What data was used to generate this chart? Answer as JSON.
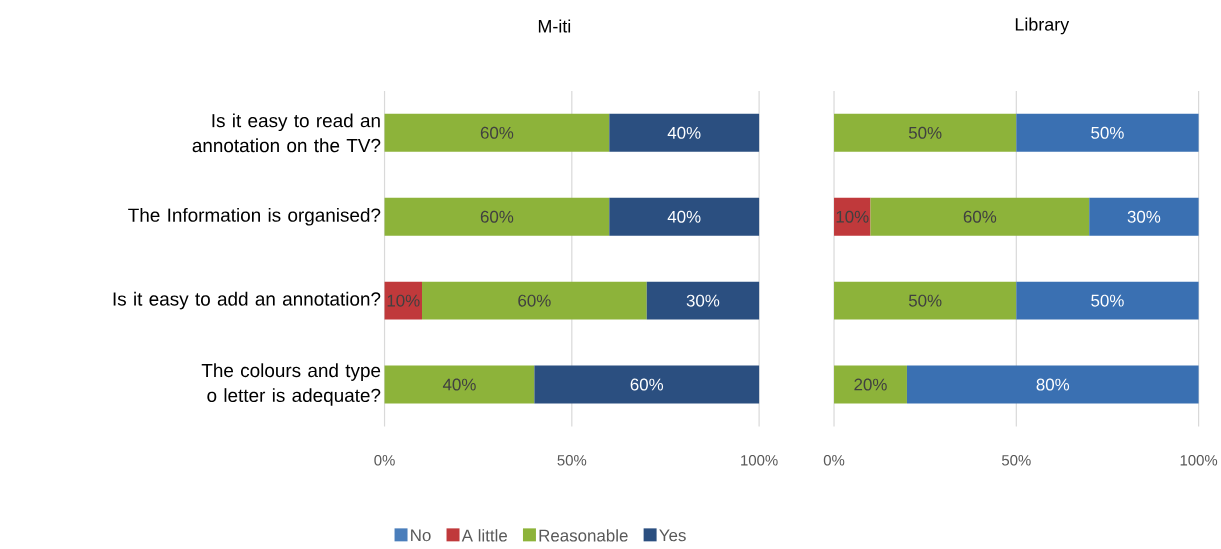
{
  "chart_data": [
    {
      "type": "bar",
      "orientation": "horizontal",
      "stacked": true,
      "title": "M-iti",
      "categories": [
        "Is it easy to read an annotation on the TV?",
        "The Information is organised?",
        "Is it easy to add an annotation?",
        "The colours and type o letter is adequate?"
      ],
      "series": [
        {
          "name": "No",
          "color": "#4a7ebb",
          "values": [
            null,
            null,
            null,
            null
          ],
          "value_labels": [
            null,
            null,
            null,
            null
          ]
        },
        {
          "name": "A little",
          "color": "#c0393b",
          "values": [
            null,
            null,
            10,
            null
          ],
          "value_labels": [
            null,
            null,
            "10%",
            null
          ]
        },
        {
          "name": "Reasonable",
          "color": "#8db33a",
          "values": [
            60,
            60,
            60,
            40
          ],
          "value_labels": [
            "60%",
            "60%",
            "60%",
            "40%"
          ]
        },
        {
          "name": "Yes",
          "color": "#2b4f80",
          "values": [
            40,
            40,
            30,
            60
          ],
          "value_labels": [
            "40%",
            "40%",
            "30%",
            "60%"
          ]
        }
      ],
      "xlim": [
        0,
        100
      ],
      "xticks": [
        {
          "value": 0,
          "label": "0%"
        },
        {
          "value": 50,
          "label": "50%"
        },
        {
          "value": 100,
          "label": "100%"
        }
      ],
      "grid": "x",
      "legend": "bottom"
    },
    {
      "type": "bar",
      "orientation": "horizontal",
      "stacked": true,
      "title": "Library",
      "categories": [
        null,
        null,
        null,
        null
      ],
      "series": [
        {
          "color": "#c0393b",
          "values": [
            null,
            10,
            null,
            null
          ],
          "value_labels": [
            null,
            "10%",
            null,
            null
          ]
        },
        {
          "color": "#8db33a",
          "values": [
            50,
            60,
            50,
            20
          ],
          "value_labels": [
            "50%",
            "60%",
            "50%",
            "20%"
          ]
        },
        {
          "color": "#3a70b2",
          "values": [
            50,
            30,
            50,
            80
          ],
          "value_labels": [
            "50%",
            "30%",
            "50%",
            "80%"
          ]
        }
      ],
      "xlim": [
        0,
        100
      ],
      "xticks": [
        {
          "value": 0,
          "label": "0%"
        },
        {
          "value": 50,
          "label": "50%"
        },
        {
          "value": 100,
          "label": "100%"
        }
      ],
      "grid": "x",
      "tick_labels": "x"
    }
  ]
}
